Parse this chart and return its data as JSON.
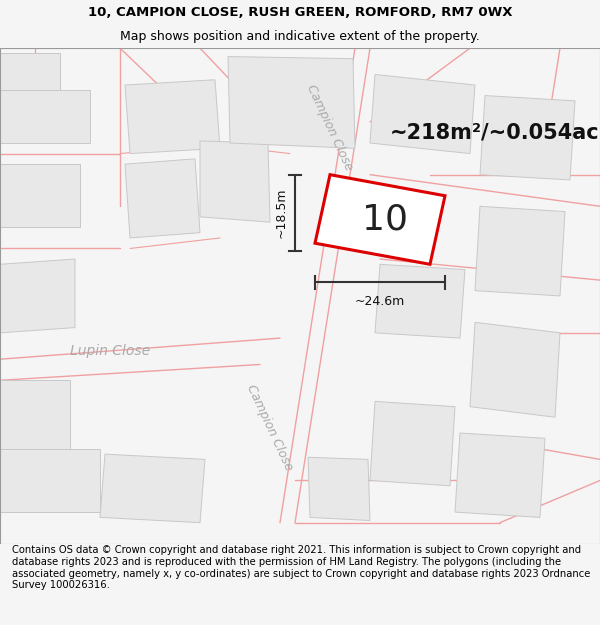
{
  "title_line1": "10, CAMPION CLOSE, RUSH GREEN, ROMFORD, RM7 0WX",
  "title_line2": "Map shows position and indicative extent of the property.",
  "footer_text": "Contains OS data © Crown copyright and database right 2021. This information is subject to Crown copyright and database rights 2023 and is reproduced with the permission of HM Land Registry. The polygons (including the associated geometry, namely x, y co-ordinates) are subject to Crown copyright and database rights 2023 Ordnance Survey 100026316.",
  "area_text": "~218m²/~0.054ac.",
  "property_number": "10",
  "dim1_text": "~18.5m",
  "dim2_text": "~24.6m",
  "road_label_campion1": "Campion Close",
  "road_label_lupin": "Lupin Close",
  "road_label_campion2": "Campion Close",
  "bg_color": "#f5f5f5",
  "map_bg": "#ffffff",
  "building_fill": "#e8e8e8",
  "building_stroke": "#c8c8c8",
  "road_line_color": "#f0a0a0",
  "highlight_color": "#dd0000",
  "dim_line_color": "#333333",
  "road_label_color": "#aaaaaa",
  "title_fontsize": 9.5,
  "footer_fontsize": 7.2,
  "area_fontsize": 15,
  "number_fontsize": 26,
  "dim_fontsize": 9,
  "road_label_fontsize": 9
}
